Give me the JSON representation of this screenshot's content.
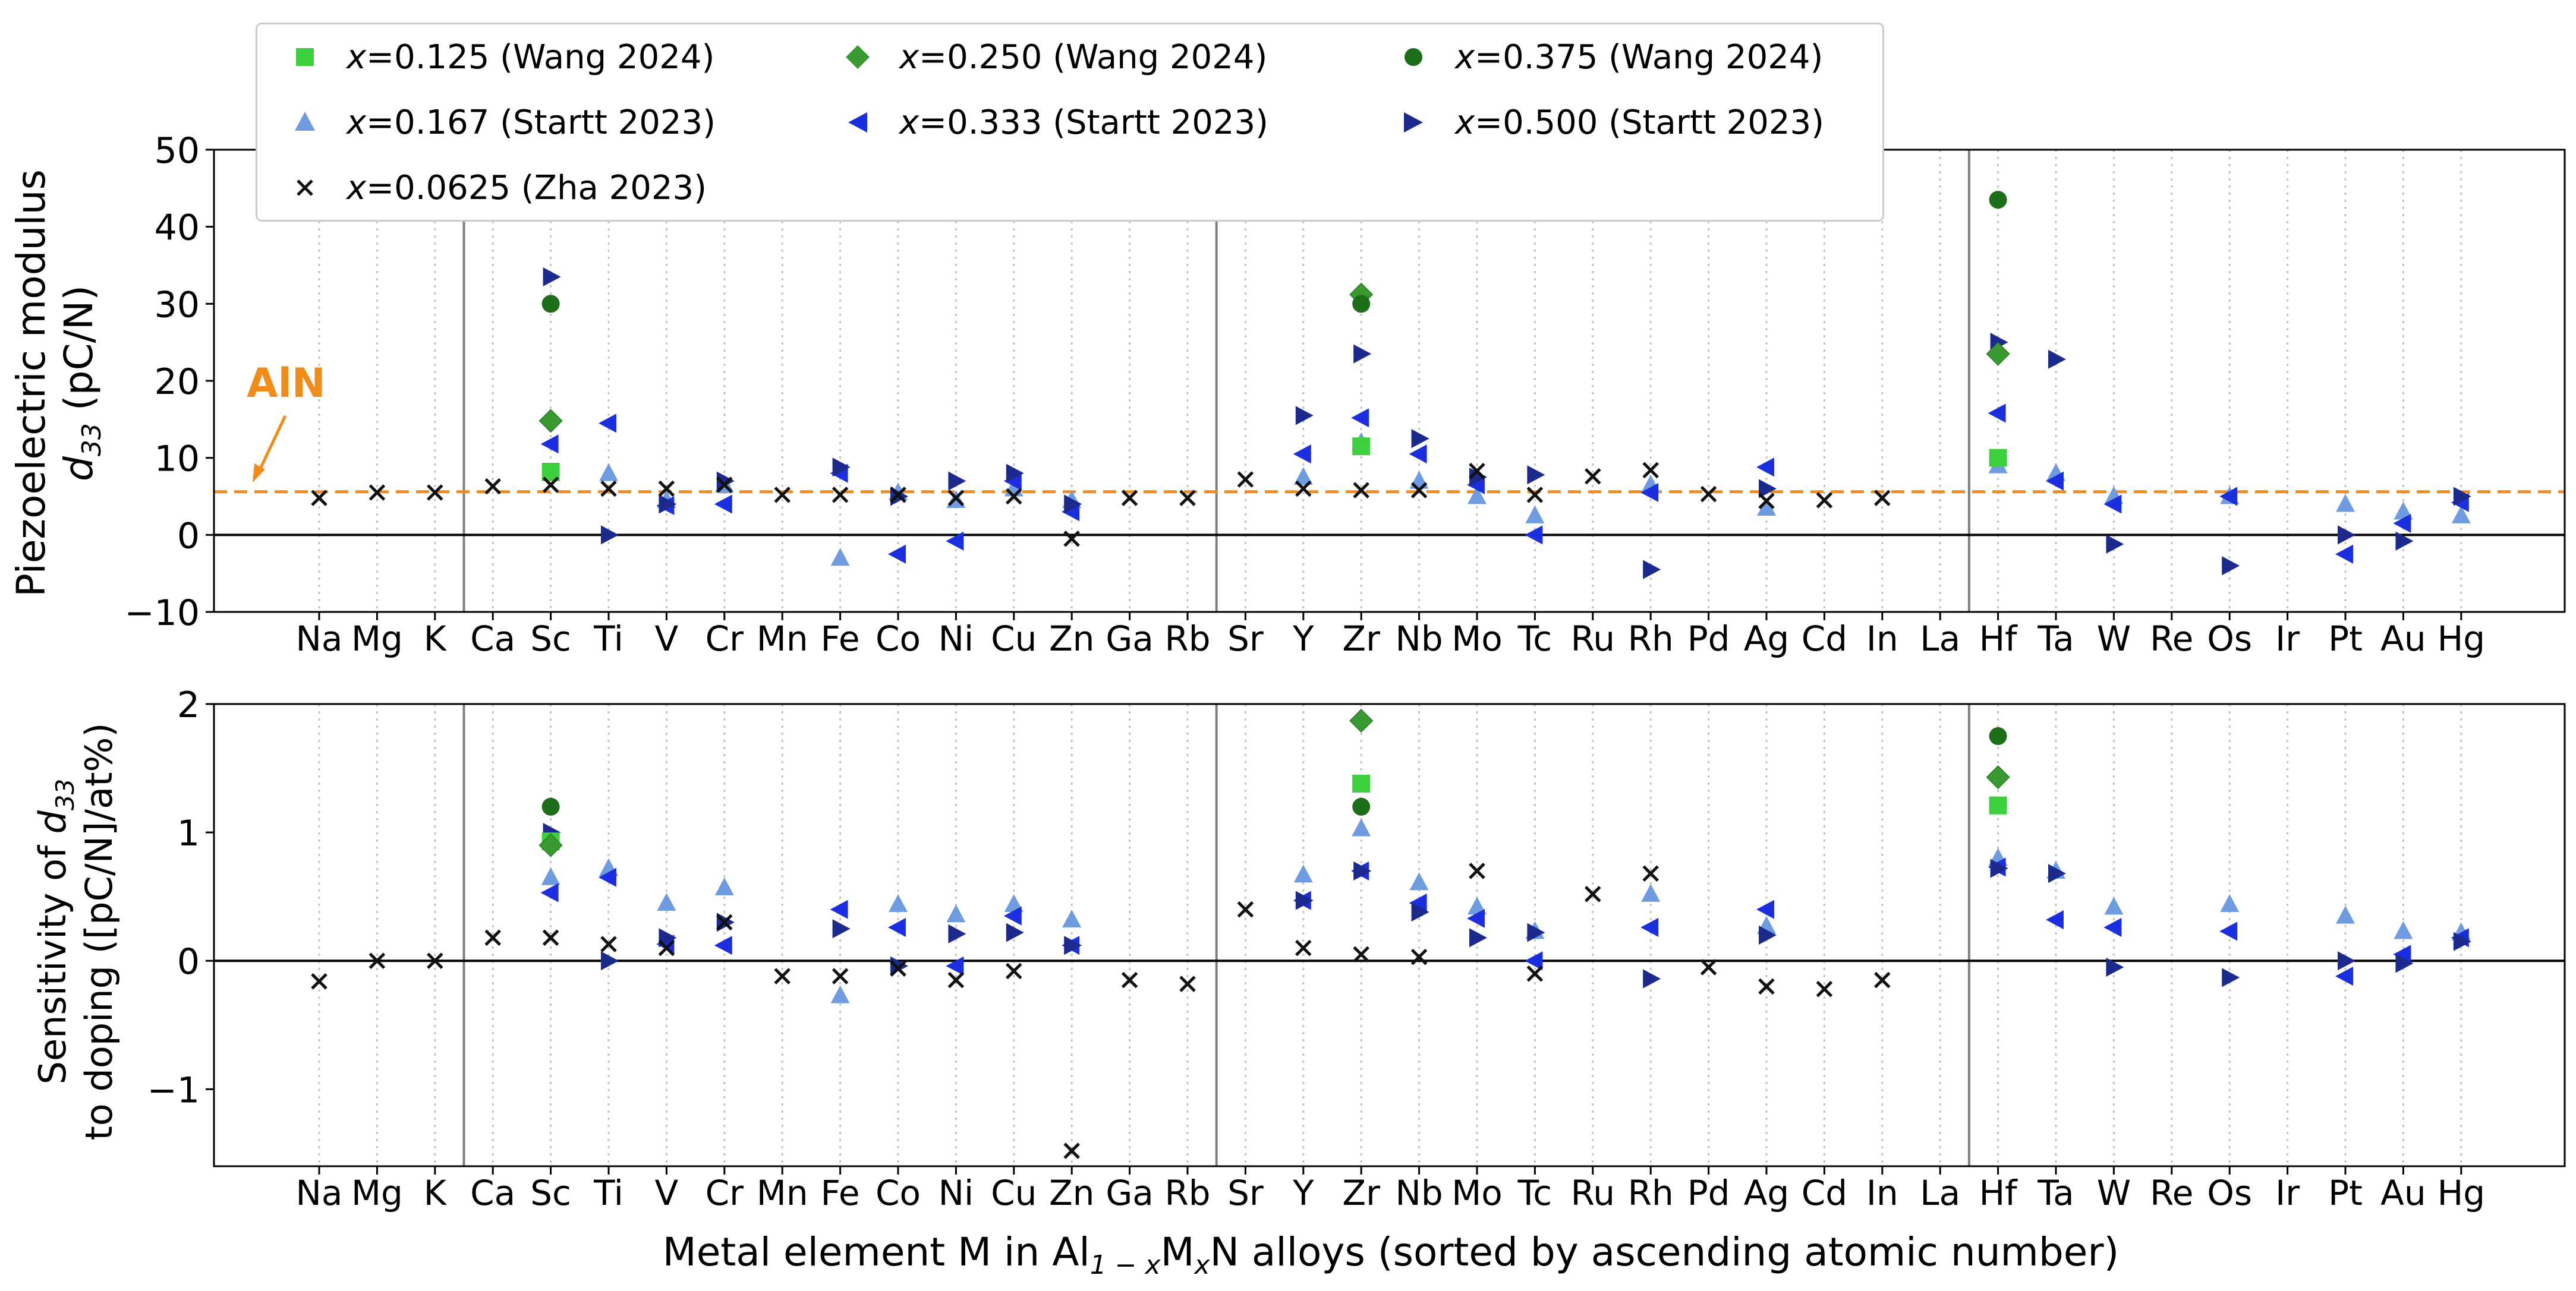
{
  "chart_data": {
    "type": "scatter",
    "xlabel_parts": {
      "prefix": "Metal element M in Al",
      "sub1": "1 − x",
      "mid": "M",
      "sub2": "x",
      "suffix": "N alloys (sorted by ascending atomic number)"
    },
    "categories": [
      "Na",
      "Mg",
      "K",
      "Ca",
      "Sc",
      "Ti",
      "V",
      "Cr",
      "Mn",
      "Fe",
      "Co",
      "Ni",
      "Cu",
      "Zn",
      "Ga",
      "Rb",
      "Sr",
      "Y",
      "Zr",
      "Nb",
      "Mo",
      "Tc",
      "Ru",
      "Rh",
      "Pd",
      "Ag",
      "Cd",
      "In",
      "La",
      "Hf",
      "Ta",
      "W",
      "Re",
      "Os",
      "Ir",
      "Pt",
      "Au",
      "Hg"
    ],
    "group_separators_after": [
      "K",
      "Rb",
      "La"
    ],
    "series_meta": [
      {
        "key": "w125",
        "label_var": "x",
        "label_rest": "=0.125 (Wang 2024)",
        "marker": "square",
        "color": "#3ecf3e"
      },
      {
        "key": "w250",
        "label_var": "x",
        "label_rest": "=0.250 (Wang 2024)",
        "marker": "diamond",
        "color": "#3a9a32"
      },
      {
        "key": "w375",
        "label_var": "x",
        "label_rest": "=0.375 (Wang 2024)",
        "marker": "circle",
        "color": "#1c6e18"
      },
      {
        "key": "s167",
        "label_var": "x",
        "label_rest": "=0.167 (Startt 2023)",
        "marker": "triangle-up",
        "color": "#6f9be0"
      },
      {
        "key": "s333",
        "label_var": "x",
        "label_rest": "=0.333 (Startt 2023)",
        "marker": "triangle-left",
        "color": "#1b2ee0"
      },
      {
        "key": "s500",
        "label_var": "x",
        "label_rest": "=0.500 (Startt 2023)",
        "marker": "triangle-right",
        "color": "#1b2a8c"
      },
      {
        "key": "z0625",
        "label_var": "x",
        "label_rest": "=0.0625 (Zha 2023)",
        "marker": "x",
        "color": "#111111"
      }
    ],
    "panels": [
      {
        "name": "d33",
        "ylabel_line1": "Piezoelectric modulus",
        "ylabel_line2_var": "d",
        "ylabel_line2_sub": "33",
        "ylabel_line2_unit": " (pC/N)",
        "ylim": [
          -10,
          50
        ],
        "yticks": [
          -10,
          0,
          10,
          20,
          30,
          40,
          50
        ],
        "reference_line": {
          "value": 5.6,
          "label": "AlN",
          "color": "#f08c1a"
        },
        "series": {
          "w125": [
            [
              "Sc",
              8.2
            ],
            [
              "Zr",
              11.5
            ],
            [
              "Hf",
              10.0
            ]
          ],
          "w250": [
            [
              "Sc",
              14.8
            ],
            [
              "Zr",
              31.2
            ],
            [
              "Hf",
              23.5
            ]
          ],
          "w375": [
            [
              "Sc",
              30.0
            ],
            [
              "Zr",
              30.0
            ],
            [
              "Hf",
              43.5
            ]
          ],
          "s167": [
            [
              "Sc",
              8.0
            ],
            [
              "Ti",
              8.0
            ],
            [
              "V",
              4.5
            ],
            [
              "Cr",
              6.5
            ],
            [
              "Fe",
              -3.0
            ],
            [
              "Co",
              5.5
            ],
            [
              "Ni",
              4.5
            ],
            [
              "Cu",
              6.0
            ],
            [
              "Zn",
              4.5
            ],
            [
              "Y",
              7.5
            ],
            [
              "Zr",
              12.0
            ],
            [
              "Nb",
              7.0
            ],
            [
              "Mo",
              5.0
            ],
            [
              "Tc",
              2.5
            ],
            [
              "Rh",
              6.5
            ],
            [
              "Ag",
              3.5
            ],
            [
              "Hf",
              9.0
            ],
            [
              "Ta",
              8.0
            ],
            [
              "W",
              5.0
            ],
            [
              "Os",
              5.0
            ],
            [
              "Pt",
              4.0
            ],
            [
              "Au",
              3.0
            ],
            [
              "Hg",
              2.5
            ]
          ],
          "s333": [
            [
              "Sc",
              11.8
            ],
            [
              "Ti",
              14.5
            ],
            [
              "V",
              3.8
            ],
            [
              "Cr",
              4.0
            ],
            [
              "Fe",
              8.0
            ],
            [
              "Co",
              -2.5
            ],
            [
              "Ni",
              -0.8
            ],
            [
              "Cu",
              7.0
            ],
            [
              "Zn",
              3.0
            ],
            [
              "Y",
              10.5
            ],
            [
              "Zr",
              15.2
            ],
            [
              "Nb",
              10.5
            ],
            [
              "Mo",
              6.5
            ],
            [
              "Tc",
              0.0
            ],
            [
              "Rh",
              5.5
            ],
            [
              "Ag",
              8.8
            ],
            [
              "Hf",
              15.8
            ],
            [
              "Ta",
              7.0
            ],
            [
              "W",
              4.0
            ],
            [
              "Os",
              5.0
            ],
            [
              "Pt",
              -2.5
            ],
            [
              "Au",
              1.5
            ],
            [
              "Hg",
              4.2
            ]
          ],
          "s500": [
            [
              "Sc",
              33.5
            ],
            [
              "Ti",
              0.0
            ],
            [
              "V",
              4.0
            ],
            [
              "Cr",
              7.0
            ],
            [
              "Fe",
              8.8
            ],
            [
              "Co",
              5.0
            ],
            [
              "Ni",
              7.0
            ],
            [
              "Cu",
              8.0
            ],
            [
              "Zn",
              4.0
            ],
            [
              "Y",
              15.5
            ],
            [
              "Zr",
              23.5
            ],
            [
              "Nb",
              12.5
            ],
            [
              "Mo",
              7.5
            ],
            [
              "Tc",
              7.8
            ],
            [
              "Rh",
              -4.5
            ],
            [
              "Ag",
              6.0
            ],
            [
              "Hf",
              25.0
            ],
            [
              "Ta",
              22.8
            ],
            [
              "W",
              -1.2
            ],
            [
              "Os",
              -4.0
            ],
            [
              "Pt",
              0.0
            ],
            [
              "Au",
              -0.8
            ],
            [
              "Hg",
              5.0
            ]
          ],
          "z0625": [
            [
              "Na",
              4.8
            ],
            [
              "Mg",
              5.5
            ],
            [
              "K",
              5.5
            ],
            [
              "Ca",
              6.3
            ],
            [
              "Sc",
              6.5
            ],
            [
              "Ti",
              6.0
            ],
            [
              "V",
              6.0
            ],
            [
              "Cr",
              6.5
            ],
            [
              "Mn",
              5.2
            ],
            [
              "Fe",
              5.2
            ],
            [
              "Co",
              5.2
            ],
            [
              "Ni",
              4.8
            ],
            [
              "Cu",
              5.0
            ],
            [
              "Zn",
              -0.5
            ],
            [
              "Ga",
              4.8
            ],
            [
              "Rb",
              4.8
            ],
            [
              "Sr",
              7.2
            ],
            [
              "Y",
              6.0
            ],
            [
              "Zr",
              5.8
            ],
            [
              "Nb",
              5.8
            ],
            [
              "Mo",
              8.3
            ],
            [
              "Tc",
              5.2
            ],
            [
              "Ru",
              7.6
            ],
            [
              "Rh",
              8.4
            ],
            [
              "Pd",
              5.3
            ],
            [
              "Ag",
              4.4
            ],
            [
              "Cd",
              4.5
            ],
            [
              "In",
              4.8
            ]
          ]
        }
      },
      {
        "name": "sensitivity",
        "ylabel_line1": "Sensitivity of d33",
        "ylabel_line2": "to doping ([pC/N]/at%)",
        "ylim": [
          -1.6,
          2.0
        ],
        "yticks": [
          -1,
          0,
          1,
          2
        ],
        "series": {
          "w125": [
            [
              "Sc",
              0.93
            ],
            [
              "Zr",
              1.38
            ],
            [
              "Hf",
              1.21
            ]
          ],
          "w250": [
            [
              "Sc",
              0.9
            ],
            [
              "Zr",
              1.87
            ],
            [
              "Hf",
              1.43
            ]
          ],
          "w375": [
            [
              "Sc",
              1.2
            ],
            [
              "Zr",
              1.2
            ],
            [
              "Hf",
              1.75
            ]
          ],
          "s167": [
            [
              "Sc",
              0.65
            ],
            [
              "Ti",
              0.72
            ],
            [
              "V",
              0.45
            ],
            [
              "Cr",
              0.57
            ],
            [
              "Fe",
              -0.27
            ],
            [
              "Co",
              0.44
            ],
            [
              "Ni",
              0.36
            ],
            [
              "Cu",
              0.44
            ],
            [
              "Zn",
              0.32
            ],
            [
              "Y",
              0.67
            ],
            [
              "Zr",
              1.03
            ],
            [
              "Nb",
              0.61
            ],
            [
              "Mo",
              0.42
            ],
            [
              "Tc",
              0.23
            ],
            [
              "Rh",
              0.52
            ],
            [
              "Ag",
              0.27
            ],
            [
              "Hf",
              0.8
            ],
            [
              "Ta",
              0.7
            ],
            [
              "W",
              0.42
            ],
            [
              "Os",
              0.44
            ],
            [
              "Pt",
              0.35
            ],
            [
              "Au",
              0.23
            ],
            [
              "Hg",
              0.22
            ]
          ],
          "s333": [
            [
              "Sc",
              0.53
            ],
            [
              "Ti",
              0.65
            ],
            [
              "V",
              0.13
            ],
            [
              "Cr",
              0.12
            ],
            [
              "Fe",
              0.4
            ],
            [
              "Co",
              0.26
            ],
            [
              "Ni",
              -0.04
            ],
            [
              "Cu",
              0.35
            ],
            [
              "Zn",
              0.12
            ],
            [
              "Y",
              0.47
            ],
            [
              "Zr",
              0.7
            ],
            [
              "Nb",
              0.45
            ],
            [
              "Mo",
              0.33
            ],
            [
              "Tc",
              0.0
            ],
            [
              "Rh",
              0.26
            ],
            [
              "Ag",
              0.4
            ],
            [
              "Hf",
              0.73
            ],
            [
              "Ta",
              0.32
            ],
            [
              "W",
              0.26
            ],
            [
              "Os",
              0.23
            ],
            [
              "Pt",
              -0.12
            ],
            [
              "Au",
              0.05
            ],
            [
              "Hg",
              0.18
            ]
          ],
          "s500": [
            [
              "Sc",
              1.0
            ],
            [
              "Ti",
              0.0
            ],
            [
              "V",
              0.18
            ],
            [
              "Cr",
              0.3
            ],
            [
              "Fe",
              0.25
            ],
            [
              "Co",
              -0.04
            ],
            [
              "Ni",
              0.21
            ],
            [
              "Cu",
              0.22
            ],
            [
              "Zn",
              0.12
            ],
            [
              "Y",
              0.47
            ],
            [
              "Zr",
              0.7
            ],
            [
              "Nb",
              0.38
            ],
            [
              "Mo",
              0.18
            ],
            [
              "Tc",
              0.22
            ],
            [
              "Rh",
              -0.14
            ],
            [
              "Ag",
              0.2
            ],
            [
              "Hf",
              0.72
            ],
            [
              "Ta",
              0.68
            ],
            [
              "W",
              -0.05
            ],
            [
              "Os",
              -0.13
            ],
            [
              "Pt",
              0.0
            ],
            [
              "Au",
              -0.02
            ],
            [
              "Hg",
              0.15
            ]
          ],
          "z0625": [
            [
              "Na",
              -0.16
            ],
            [
              "Mg",
              0.0
            ],
            [
              "K",
              0.0
            ],
            [
              "Ca",
              0.18
            ],
            [
              "Sc",
              0.18
            ],
            [
              "Ti",
              0.13
            ],
            [
              "V",
              0.1
            ],
            [
              "Cr",
              0.3
            ],
            [
              "Mn",
              -0.12
            ],
            [
              "Fe",
              -0.12
            ],
            [
              "Co",
              -0.06
            ],
            [
              "Ni",
              -0.15
            ],
            [
              "Cu",
              -0.08
            ],
            [
              "Zn",
              -1.48
            ],
            [
              "Ga",
              -0.15
            ],
            [
              "Rb",
              -0.18
            ],
            [
              "Sr",
              0.4
            ],
            [
              "Y",
              0.1
            ],
            [
              "Zr",
              0.05
            ],
            [
              "Nb",
              0.03
            ],
            [
              "Mo",
              0.7
            ],
            [
              "Tc",
              -0.1
            ],
            [
              "Ru",
              0.52
            ],
            [
              "Rh",
              0.68
            ],
            [
              "Pd",
              -0.05
            ],
            [
              "Ag",
              -0.2
            ],
            [
              "Cd",
              -0.22
            ],
            [
              "In",
              -0.15
            ]
          ]
        }
      }
    ]
  }
}
